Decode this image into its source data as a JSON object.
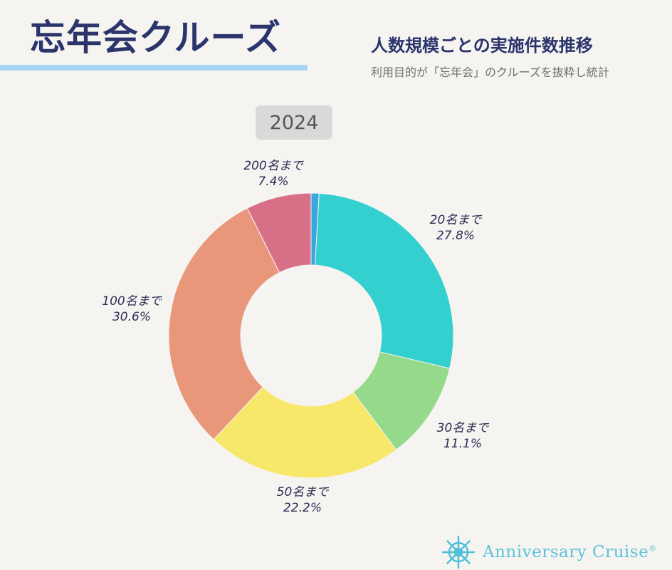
{
  "header": {
    "title": "忘年会クルーズ",
    "subtitle": "人数規模ごとの実施件数推移",
    "caption": "利用目的が「忘年会」のクルーズを抜粋し統計"
  },
  "year_badge": "2024",
  "colors": {
    "title": "#2b356b",
    "underline": "#a7d4f3",
    "badge_bg": "#d9d9d9",
    "background": "#f5f4f1"
  },
  "labels": [
    {
      "name": "20名まで",
      "pct": "27.8%"
    },
    {
      "name": "30名まで",
      "pct": "11.1%"
    },
    {
      "name": "50名まで",
      "pct": "22.2%"
    },
    {
      "name": "100名まで",
      "pct": "30.6%"
    },
    {
      "name": "200名まで",
      "pct": "7.4%"
    }
  ],
  "logo": {
    "icon": "ship-wheel-icon",
    "text": "Anniversary Cruise",
    "mark": "®"
  },
  "chart_data": {
    "type": "pie",
    "donut": true,
    "title": "2024",
    "categories": [
      "(unlabeled)",
      "20名まで",
      "30名まで",
      "50名まで",
      "100名まで",
      "200名まで"
    ],
    "values": [
      0.9,
      27.8,
      11.1,
      22.2,
      30.6,
      7.4
    ],
    "colors": [
      "#3aa6e0",
      "#33d0cf",
      "#94da8a",
      "#f8e86a",
      "#e8977b",
      "#d77087"
    ],
    "start_angle_deg": 0,
    "direction": "clockwise",
    "legend": "none (direct labels)"
  }
}
